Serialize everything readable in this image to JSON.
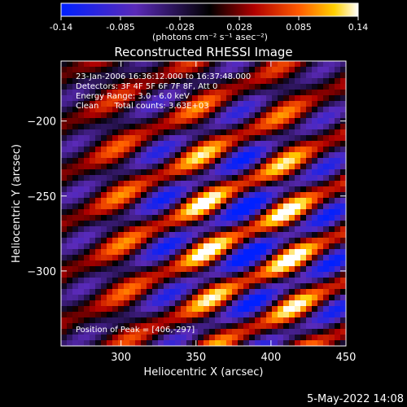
{
  "colorbar": {
    "tick_labels": [
      "-0.14",
      "-0.085",
      "-0.028",
      "0.028",
      "0.085",
      "0.14"
    ],
    "range": [
      -0.14,
      0.14
    ],
    "unit_label": "(photons cm⁻² s⁻¹ asec⁻²)"
  },
  "chart_data": {
    "type": "heatmap",
    "title": "Reconstructed RHESSI Image",
    "xlabel": "Heliocentric X (arcsec)",
    "ylabel": "Heliocentric Y (arcsec)",
    "xlim": [
      260,
      450
    ],
    "ylim": [
      -350,
      -160
    ],
    "x_ticks": [
      300,
      350,
      400,
      450
    ],
    "y_ticks": [
      -200,
      -250,
      -300
    ],
    "value_range": [
      -0.14,
      0.14
    ],
    "peak": [
      406,
      -297
    ],
    "colormap": "red-yellow-white positive / blue-purple negative",
    "annotations": [
      "23-Jan-2006 16:36:12.000 to 16:37:48.000",
      "Detectors: 3F 4F 5F 6F 7F 8F, Att 0",
      "Energy Range: 3.0 - 6.0 keV",
      "Clean      Total counts: 3.63E+03",
      "Position of Peak = [406,-297]"
    ]
  },
  "footer": {
    "date": "5-May-2022 14:08"
  }
}
